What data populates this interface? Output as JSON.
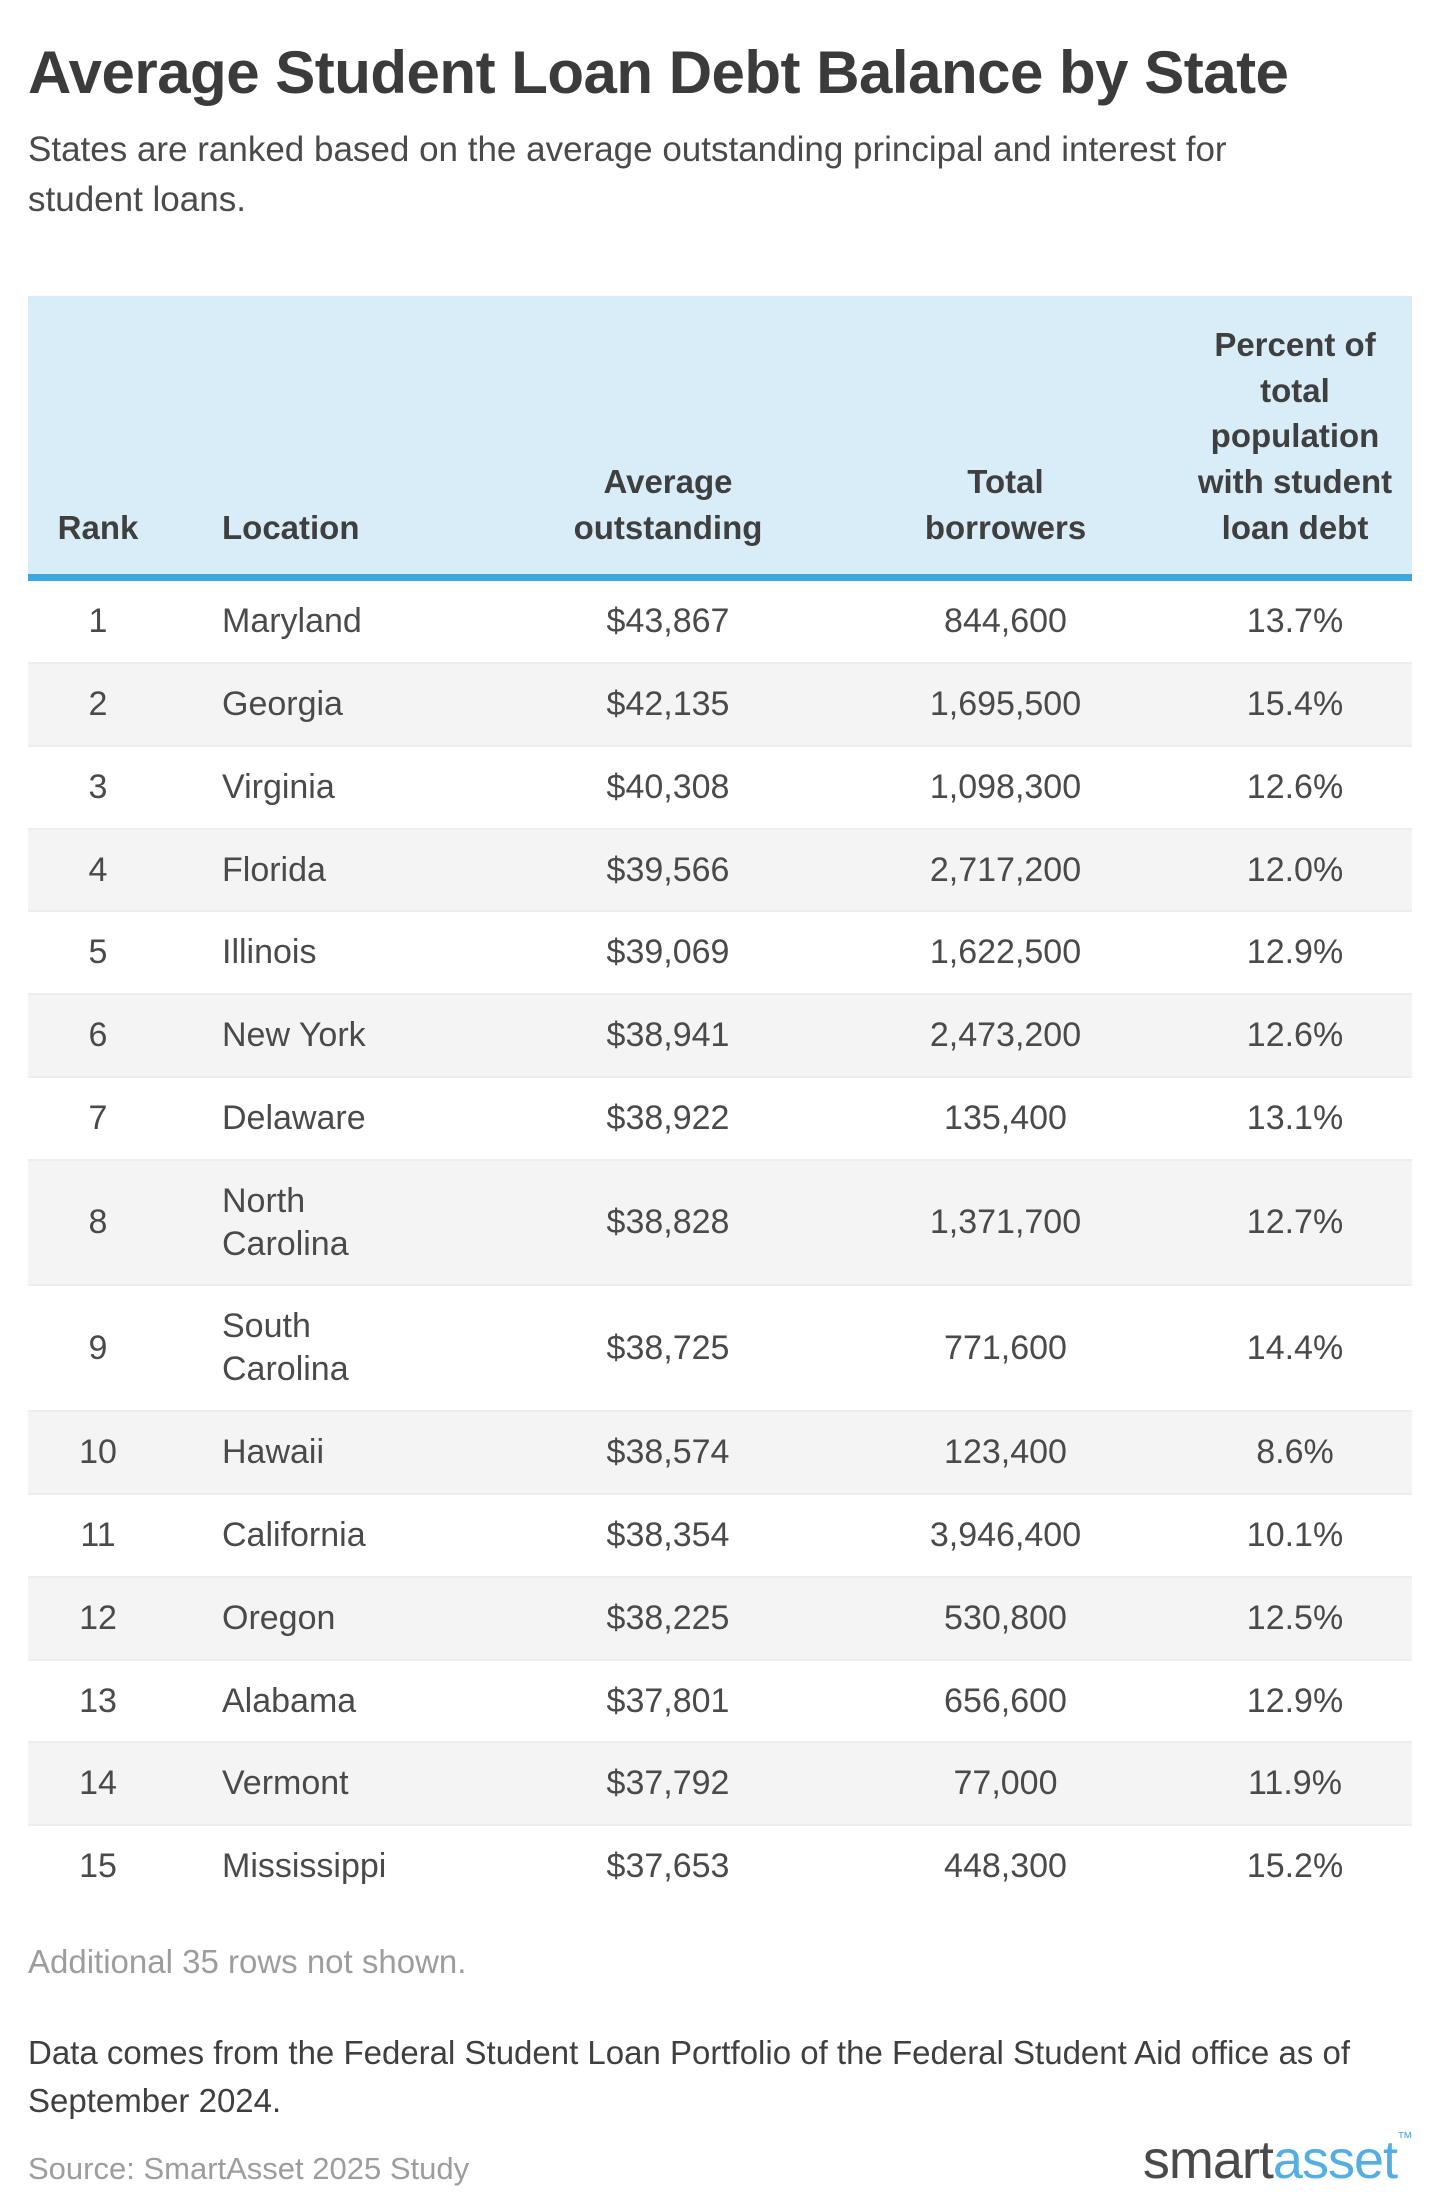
{
  "chart_data": {
    "type": "table",
    "title": "Average Student Loan Debt Balance by State",
    "subtitle": "States are ranked based on the average outstanding principal and interest for student loans.",
    "columns": [
      "Rank",
      "Location",
      "Average outstanding",
      "Total borrowers",
      "Percent of total population with student loan debt"
    ],
    "rows": [
      {
        "rank": 1,
        "location": "Maryland",
        "average_outstanding": "$43,867",
        "total_borrowers": "844,600",
        "percent_with_debt": "13.7%"
      },
      {
        "rank": 2,
        "location": "Georgia",
        "average_outstanding": "$42,135",
        "total_borrowers": "1,695,500",
        "percent_with_debt": "15.4%"
      },
      {
        "rank": 3,
        "location": "Virginia",
        "average_outstanding": "$40,308",
        "total_borrowers": "1,098,300",
        "percent_with_debt": "12.6%"
      },
      {
        "rank": 4,
        "location": "Florida",
        "average_outstanding": "$39,566",
        "total_borrowers": "2,717,200",
        "percent_with_debt": "12.0%"
      },
      {
        "rank": 5,
        "location": "Illinois",
        "average_outstanding": "$39,069",
        "total_borrowers": "1,622,500",
        "percent_with_debt": "12.9%"
      },
      {
        "rank": 6,
        "location": "New York",
        "average_outstanding": "$38,941",
        "total_borrowers": "2,473,200",
        "percent_with_debt": "12.6%"
      },
      {
        "rank": 7,
        "location": "Delaware",
        "average_outstanding": "$38,922",
        "total_borrowers": "135,400",
        "percent_with_debt": "13.1%"
      },
      {
        "rank": 8,
        "location": "North Carolina",
        "average_outstanding": "$38,828",
        "total_borrowers": "1,371,700",
        "percent_with_debt": "12.7%"
      },
      {
        "rank": 9,
        "location": "South Carolina",
        "average_outstanding": "$38,725",
        "total_borrowers": "771,600",
        "percent_with_debt": "14.4%"
      },
      {
        "rank": 10,
        "location": "Hawaii",
        "average_outstanding": "$38,574",
        "total_borrowers": "123,400",
        "percent_with_debt": "8.6%"
      },
      {
        "rank": 11,
        "location": "California",
        "average_outstanding": "$38,354",
        "total_borrowers": "3,946,400",
        "percent_with_debt": "10.1%"
      },
      {
        "rank": 12,
        "location": "Oregon",
        "average_outstanding": "$38,225",
        "total_borrowers": "530,800",
        "percent_with_debt": "12.5%"
      },
      {
        "rank": 13,
        "location": "Alabama",
        "average_outstanding": "$37,801",
        "total_borrowers": "656,600",
        "percent_with_debt": "12.9%"
      },
      {
        "rank": 14,
        "location": "Vermont",
        "average_outstanding": "$37,792",
        "total_borrowers": "77,000",
        "percent_with_debt": "11.9%"
      },
      {
        "rank": 15,
        "location": "Mississippi",
        "average_outstanding": "$37,653",
        "total_borrowers": "448,300",
        "percent_with_debt": "15.2%"
      }
    ],
    "layout_hints": {
      "striped_rows": true,
      "stripe_applies_to": "even ranks",
      "header_alignment": "bottom",
      "numeric_column_alignment": "center"
    }
  },
  "notes": {
    "truncation": "Additional 35 rows not shown.",
    "data_source": "Data comes from the Federal Student Loan Portfolio of the Federal Student Aid office as of September 2024.",
    "source": "Source: SmartAsset 2025 Study"
  },
  "logo": {
    "part1": "smart",
    "part2": "asset",
    "trademark": "™"
  },
  "colors": {
    "header_background": "#d9edf9",
    "header_border_blue": "#3fa7df",
    "row_stripe_gray": "#f4f4f4",
    "title_text": "#3b3b3b",
    "body_text": "#4a4a4a",
    "muted_text": "#9d9d9d",
    "logo_gray": "#4a4a4a",
    "logo_blue": "#55aee3"
  }
}
